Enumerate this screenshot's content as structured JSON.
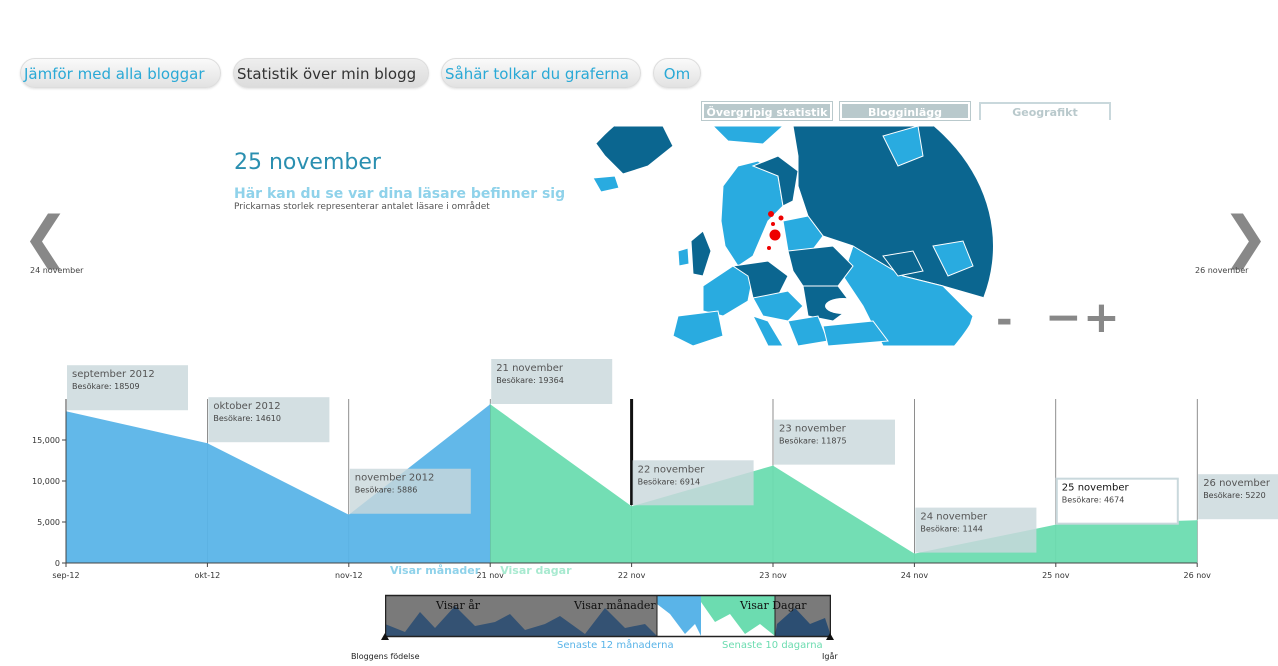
{
  "nav": [
    {
      "label": "Jämför med alla bloggar",
      "active": false
    },
    {
      "label": "Statistik över min blogg",
      "active": true
    },
    {
      "label": "Såhär tolkar du graferna",
      "active": false
    },
    {
      "label": "Om",
      "active": false
    }
  ],
  "subtabs": [
    {
      "label": "Övergripig statistik",
      "state": "inactive"
    },
    {
      "label": "Blogginlägg",
      "state": "inactive"
    },
    {
      "label": "Geografikt",
      "state": "selected"
    }
  ],
  "header": {
    "date": "25 november",
    "subtitle": "Här kan du se var dina läsare befinner sig",
    "note": "Prickarnas storlek representerar antalet läsare i området"
  },
  "prev": {
    "label": "24 november"
  },
  "next": {
    "label": "26 november"
  },
  "zoom": {
    "minus_small": "-",
    "minus": "−",
    "plus": "+"
  },
  "colors": {
    "months": "#5ab4e8",
    "days": "#6cdcb0",
    "tooltip": "#c9d8dc",
    "map_light": "#29abe0",
    "map_dark": "#0b6690",
    "dot": "#ee0000"
  },
  "chart_data": {
    "type": "area",
    "categories": [
      "sep-12",
      "okt-12",
      "nov-12",
      "21 nov",
      "22 nov",
      "23 nov",
      "24 nov",
      "25 nov",
      "26 nov"
    ],
    "ylim": [
      0,
      20000
    ],
    "ytick_labels": [
      "0",
      "5,000",
      "10,000",
      "15,000"
    ],
    "series": [
      {
        "name": "Visar månader",
        "points": [
          {
            "x": 0,
            "y": 18509
          },
          {
            "x": 1,
            "y": 14610
          },
          {
            "x": 2,
            "y": 5886
          },
          {
            "x": 3,
            "y": 19364
          }
        ]
      },
      {
        "name": "Visar dagar",
        "points": [
          {
            "x": 3,
            "y": 19364
          },
          {
            "x": 4,
            "y": 6914
          },
          {
            "x": 5,
            "y": 11875
          },
          {
            "x": 6,
            "y": 1144
          },
          {
            "x": 7,
            "y": 4674
          },
          {
            "x": 8,
            "y": 5220
          }
        ]
      }
    ],
    "marker_x": 4,
    "tooltips": [
      {
        "title": "september 2012",
        "value_label": "Besökare: 18509",
        "x": 0
      },
      {
        "title": "oktober 2012",
        "value_label": "Besökare: 14610",
        "x": 1
      },
      {
        "title": "november 2012",
        "value_label": "Besökare: 5886",
        "x": 2
      },
      {
        "title": "21 november",
        "value_label": "Besökare: 19364",
        "x": 3
      },
      {
        "title": "22 november",
        "value_label": "Besökare: 6914",
        "x": 4
      },
      {
        "title": "23 november",
        "value_label": "Besökare: 11875",
        "x": 5
      },
      {
        "title": "24 november",
        "value_label": "Besökare: 1144",
        "x": 6
      },
      {
        "title": "25 november",
        "value_label": "Besökare: 4674",
        "x": 7,
        "selected": true
      },
      {
        "title": "26 november",
        "value_label": "Besökare: 5220",
        "x": 8
      }
    ],
    "mode_labels": {
      "months": "Visar månader",
      "days": "Visar dagar"
    }
  },
  "brush": {
    "labels": {
      "years": "Visar år",
      "months": "Visar månader",
      "days": "Visar Dagar"
    },
    "footer": {
      "start": "Bloggens födelse",
      "months": "Senaste 12 månaderna",
      "days": "Senaste 10 dagarna",
      "end": "Igår"
    }
  }
}
